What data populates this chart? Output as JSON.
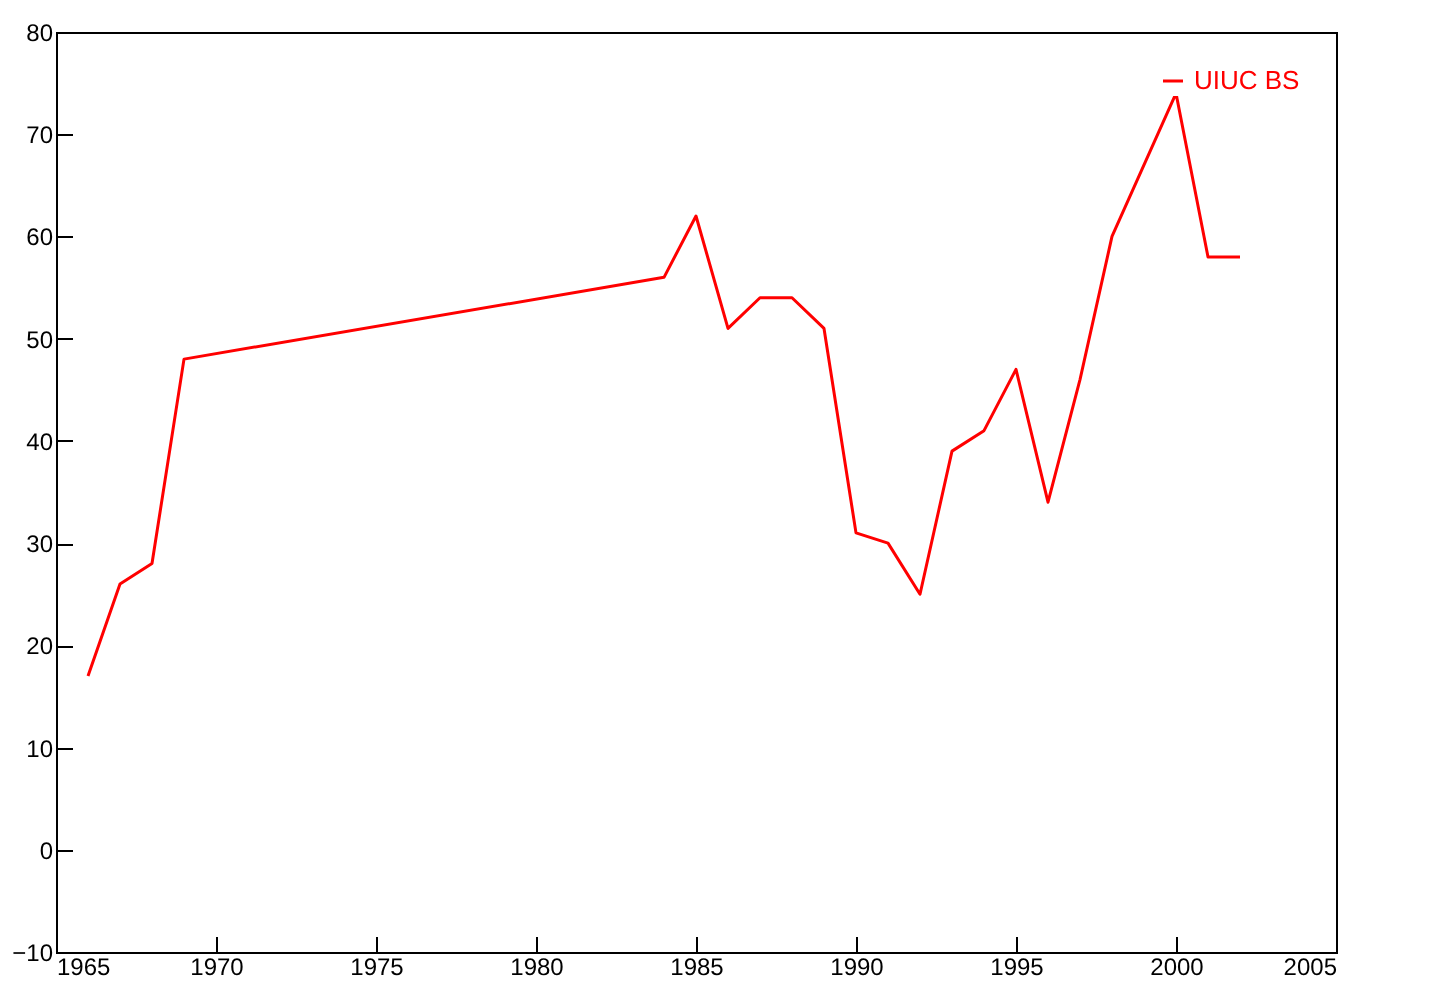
{
  "chart_data": {
    "type": "line",
    "x": [
      1966,
      1967,
      1968,
      1969,
      1984,
      1985,
      1986,
      1987,
      1988,
      1989,
      1990,
      1991,
      1992,
      1993,
      1994,
      1995,
      1996,
      1997,
      1998,
      2000,
      2001,
      2002
    ],
    "series": [
      {
        "name": "UIUC BS",
        "color": "#ff0000",
        "values": [
          17,
          26,
          28,
          48,
          56,
          62,
          51,
          54,
          54,
          51,
          31,
          30,
          25,
          39,
          41,
          47,
          34,
          46,
          60,
          74,
          58,
          58
        ]
      }
    ],
    "xlim": [
      1965,
      2005
    ],
    "xticks": [
      1965,
      1970,
      1975,
      1980,
      1985,
      1990,
      1995,
      2000,
      2005
    ],
    "ylim": [
      -10,
      80
    ],
    "yticks": [
      -10,
      0,
      10,
      20,
      30,
      40,
      50,
      60,
      70,
      80
    ],
    "grid": false,
    "legend": "top right"
  }
}
